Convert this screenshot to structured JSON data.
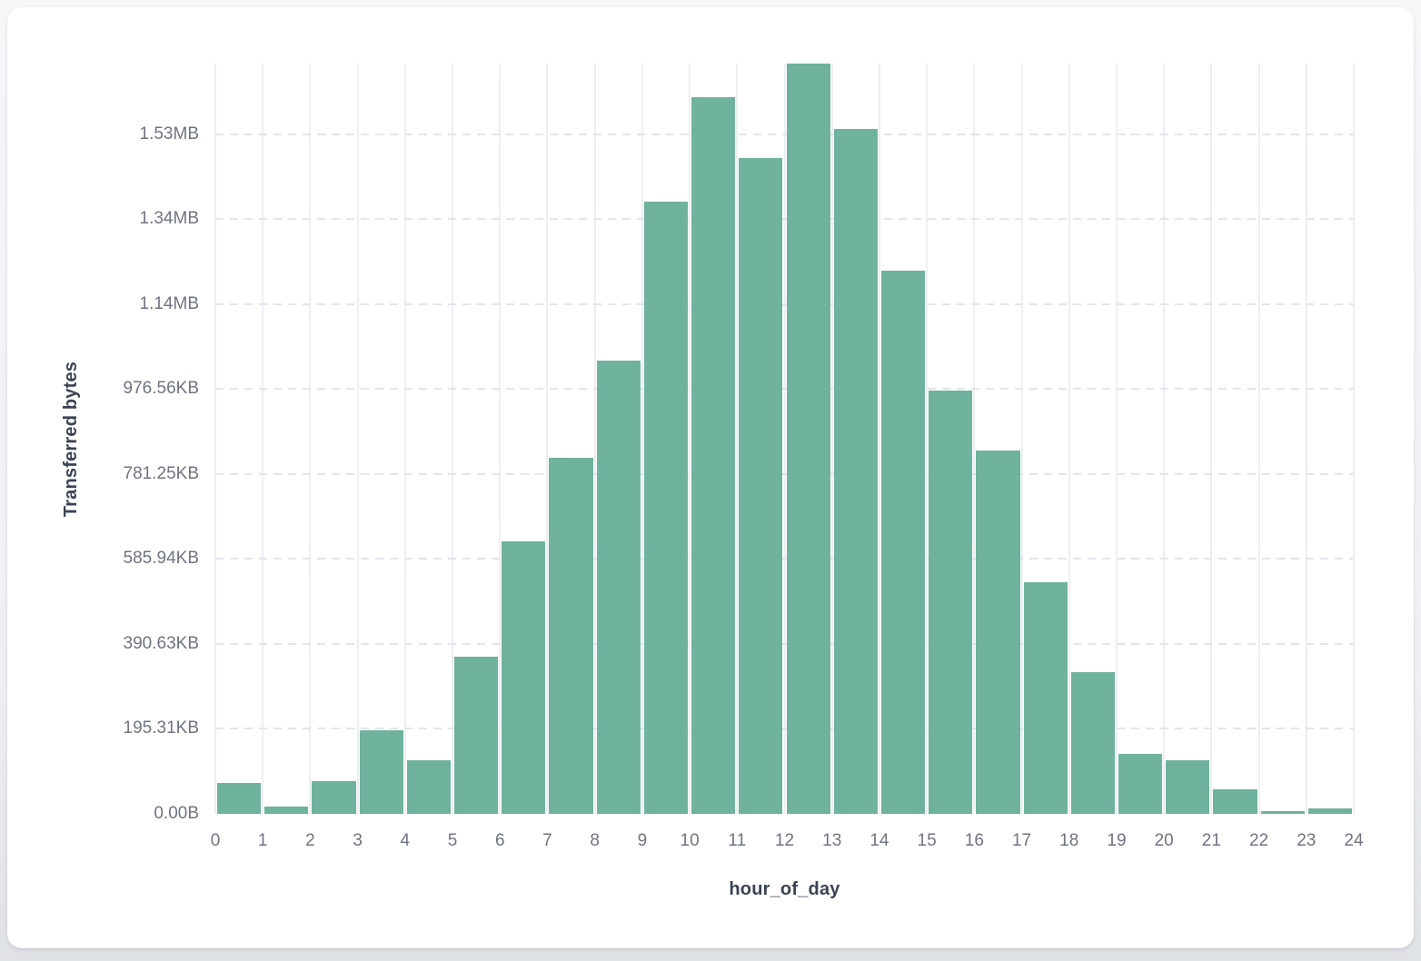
{
  "colors": {
    "page_bg": "#eef0f3",
    "card_bg": "#ffffff",
    "bar": "#6fb29d",
    "vgrid": "#edeff3",
    "hgrid": "#e2e5ea",
    "tick_label": "#6e7480",
    "axis_title": "#3a4354"
  },
  "chart_data": {
    "type": "bar",
    "variant": "histogram",
    "title": "",
    "xlabel": "hour_of_day",
    "ylabel": "Transferred bytes",
    "legend": "none",
    "grid": {
      "vertical": "solid",
      "horizontal": "dashed"
    },
    "bin_edges": [
      0,
      1,
      2,
      3,
      4,
      5,
      6,
      7,
      8,
      9,
      10,
      11,
      12,
      13,
      14,
      15,
      16,
      17,
      18,
      19,
      20,
      21,
      22,
      23,
      24
    ],
    "x_tick_labels": [
      "0",
      "1",
      "2",
      "3",
      "4",
      "5",
      "6",
      "7",
      "8",
      "9",
      "10",
      "11",
      "12",
      "13",
      "14",
      "15",
      "16",
      "17",
      "18",
      "19",
      "20",
      "21",
      "22",
      "23",
      "24"
    ],
    "y_ticks": [
      {
        "label": "0.00B",
        "bytes": 0
      },
      {
        "label": "195.31KB",
        "bytes": 200000
      },
      {
        "label": "390.63KB",
        "bytes": 400000
      },
      {
        "label": "585.94KB",
        "bytes": 600000
      },
      {
        "label": "781.25KB",
        "bytes": 800000
      },
      {
        "label": "976.56KB",
        "bytes": 1000000
      },
      {
        "label": "1.14MB",
        "bytes": 1200000
      },
      {
        "label": "1.34MB",
        "bytes": 1400000
      },
      {
        "label": "1.53MB",
        "bytes": 1600000
      }
    ],
    "ylim": [
      0,
      1766000
    ],
    "series": [
      {
        "name": "Transferred bytes",
        "values_bytes": [
          73000,
          17000,
          77000,
          197000,
          126000,
          370000,
          641000,
          838000,
          1067000,
          1441000,
          1687000,
          1544000,
          1766000,
          1612000,
          1279000,
          996000,
          855000,
          545000,
          334000,
          141000,
          126000,
          58000,
          6000,
          13000
        ]
      }
    ]
  }
}
